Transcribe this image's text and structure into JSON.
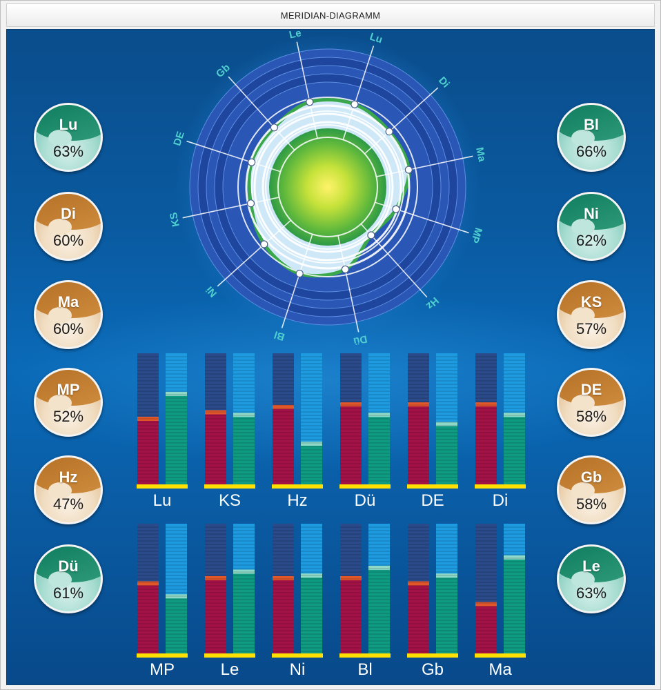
{
  "window": {
    "title": "MERIDIAN-DIAGRAMM"
  },
  "colors": {
    "green_badge": "#0b7a5c",
    "brown_badge": "#b26d22",
    "bar_left": "#a31247",
    "bar_left_marker": "#e2572a",
    "bar_right": "#0f9a82",
    "bar_right_marker": "#8ed8c8",
    "bar_empty_left": "#2a4a8a",
    "bar_empty_right": "#1e9ae0",
    "baseline": "#ffe000"
  },
  "badges_left": [
    {
      "label": "Lu",
      "value": "63%",
      "theme": "green"
    },
    {
      "label": "Di",
      "value": "60%",
      "theme": "brown"
    },
    {
      "label": "Ma",
      "value": "60%",
      "theme": "brown"
    },
    {
      "label": "MP",
      "value": "52%",
      "theme": "brown"
    },
    {
      "label": "Hz",
      "value": "47%",
      "theme": "brown"
    },
    {
      "label": "Dü",
      "value": "61%",
      "theme": "green"
    }
  ],
  "badges_right": [
    {
      "label": "Bl",
      "value": "66%",
      "theme": "green"
    },
    {
      "label": "Ni",
      "value": "62%",
      "theme": "green"
    },
    {
      "label": "KS",
      "value": "57%",
      "theme": "brown"
    },
    {
      "label": "DE",
      "value": "58%",
      "theme": "brown"
    },
    {
      "label": "Gb",
      "value": "58%",
      "theme": "brown"
    },
    {
      "label": "Le",
      "value": "63%",
      "theme": "green"
    }
  ],
  "chart_data": [
    {
      "type": "radar",
      "axes": [
        "Lu",
        "Di",
        "Ma",
        "MP",
        "Hz",
        "Dü",
        "Bl",
        "Ni",
        "KS",
        "DE",
        "Gb",
        "Le"
      ],
      "values": [
        63,
        60,
        60,
        52,
        47,
        61,
        66,
        62,
        57,
        58,
        58,
        63
      ],
      "range": [
        0,
        100
      ]
    },
    {
      "type": "bar",
      "categories": [
        "Lu",
        "KS",
        "Hz",
        "Dü",
        "DE",
        "Di",
        "MP",
        "Le",
        "Ni",
        "Bl",
        "Gb",
        "Ma"
      ],
      "series": [
        {
          "values": [
            50,
            55,
            59,
            61,
            61,
            61,
            54,
            58,
            58,
            58,
            54,
            38
          ]
        },
        {
          "values": [
            69,
            53,
            31,
            53,
            46,
            53,
            44,
            63,
            60,
            66,
            60,
            74
          ]
        }
      ],
      "ylim": [
        0,
        100
      ]
    }
  ]
}
